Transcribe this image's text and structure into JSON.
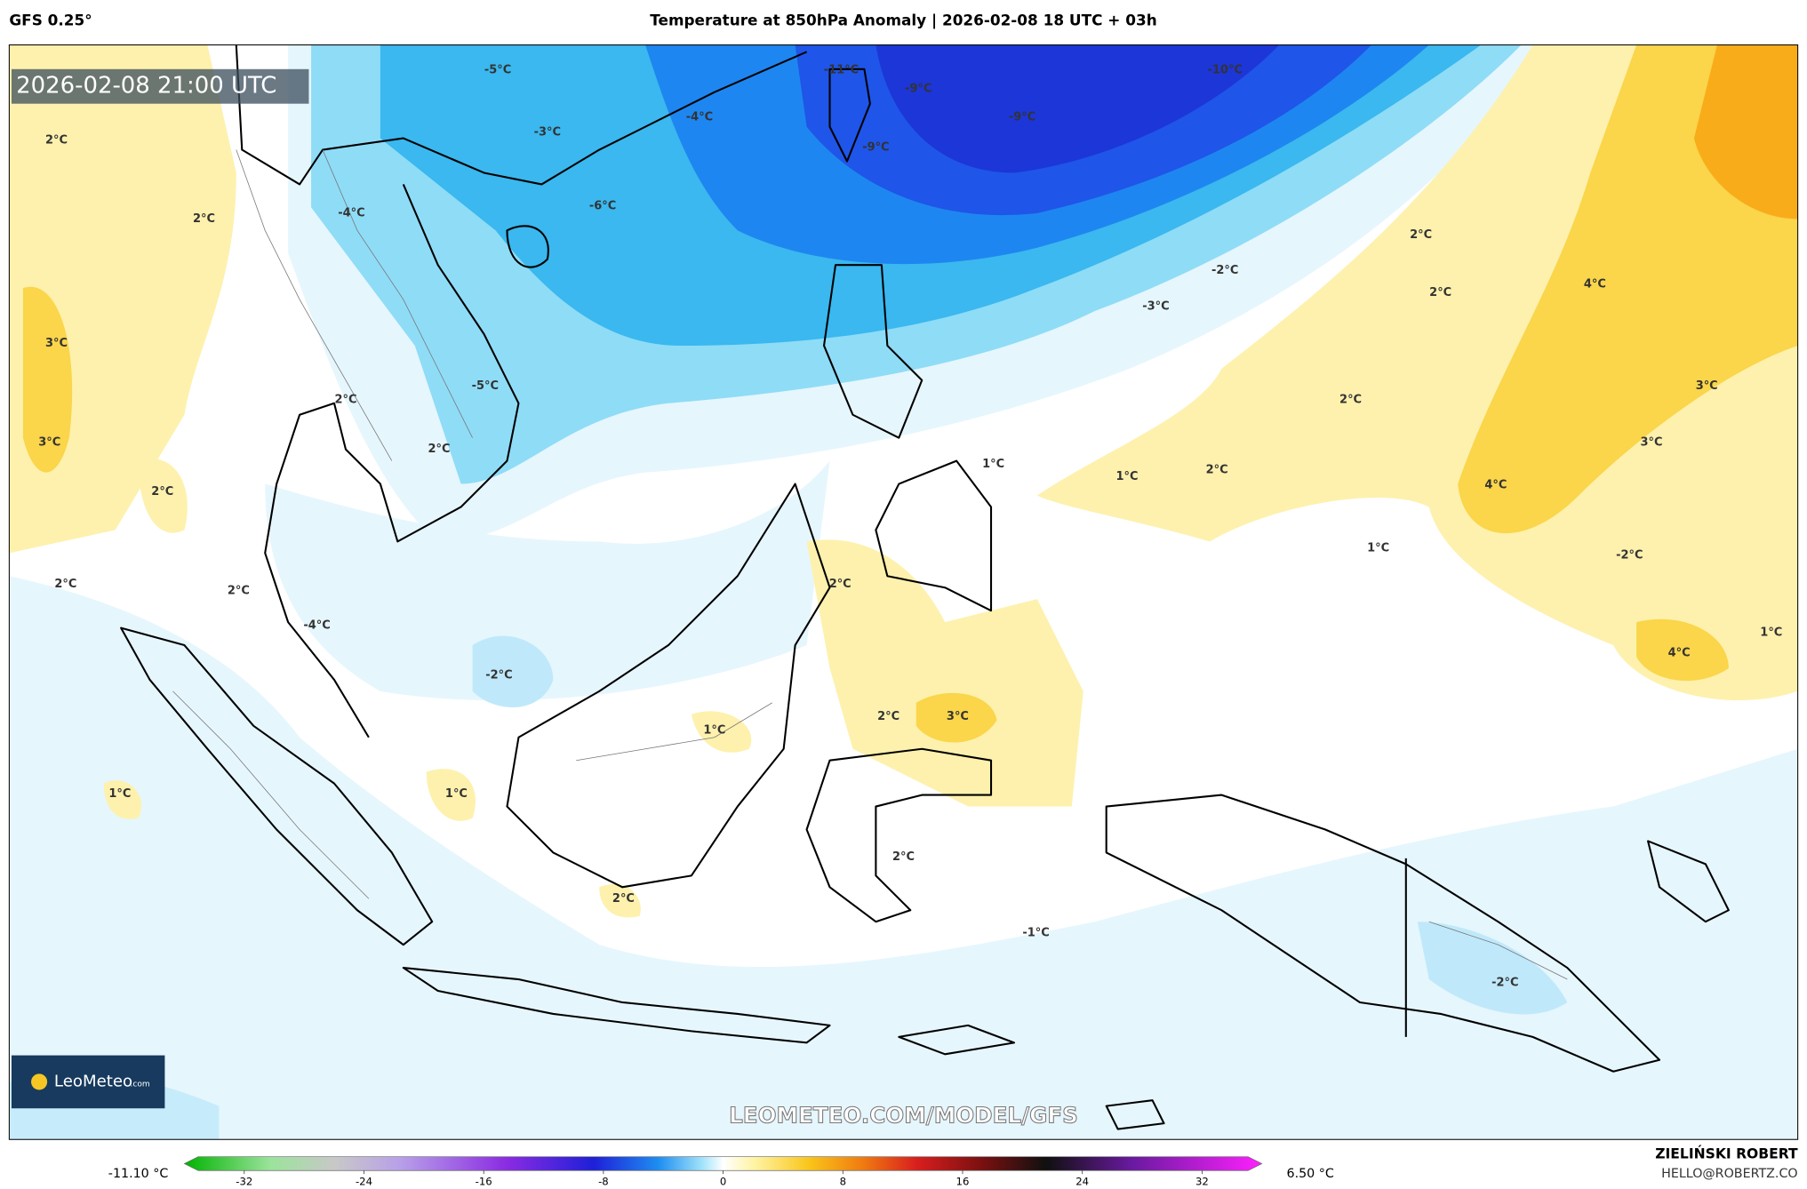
{
  "header": {
    "model": "GFS 0.25°",
    "title": "Temperature at 850hPa Anomaly | 2026-02-08 18 UTC + 03h"
  },
  "timestamp": "2026-02-08 21:00 UTC",
  "watermark": "LEOMETEO.COM/MODEL/GFS",
  "logo": {
    "name": "LeoMeteo",
    "suffix": ".com"
  },
  "contour_labels": [
    "-5°C",
    "-4°C",
    "-3°C",
    "-6°C",
    "-4°C",
    "-11°C",
    "-9°C",
    "-9°C",
    "-9°C",
    "-10°C",
    "-2°C",
    "-3°C",
    "2°C",
    "2°C",
    "4°C",
    "2°C",
    "3°C",
    "3°C",
    "2°C",
    "1°C",
    "1°C",
    "4°C",
    "1°C",
    "-2°C",
    "1°C",
    "4°C",
    "2°C",
    "3°C",
    "3°C",
    "2°C",
    "2°C",
    "2°C",
    "-5°C",
    "2°C",
    "2°C",
    "2°C",
    "-2°C",
    "2°C",
    "3°C",
    "1°C",
    "1°C",
    "1°C",
    "2°C",
    "2°C",
    "-1°C",
    "-2°C",
    "-4°C",
    "2°C"
  ],
  "colorbar": {
    "min_label": "-11.10 °C",
    "max_label": "6.50 °C",
    "lim": [
      -36,
      36
    ],
    "ticks": [
      -32,
      -24,
      -16,
      -8,
      0,
      8,
      16,
      24,
      32
    ]
  },
  "author": {
    "name": "ZIELIŃSKI ROBERT",
    "email": "HELLO@ROBERTZ.CO"
  }
}
